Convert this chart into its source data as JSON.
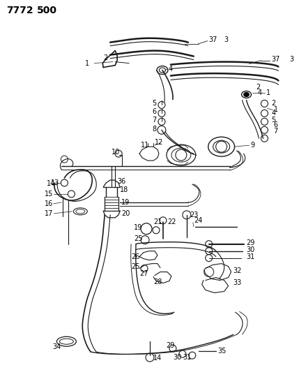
{
  "title1": "7772",
  "title2": "500",
  "bg_color": "#ffffff",
  "line_color": "#1a1a1a",
  "title_fontsize": 10,
  "label_fontsize": 7,
  "figsize": [
    4.29,
    5.33
  ],
  "dpi": 100
}
